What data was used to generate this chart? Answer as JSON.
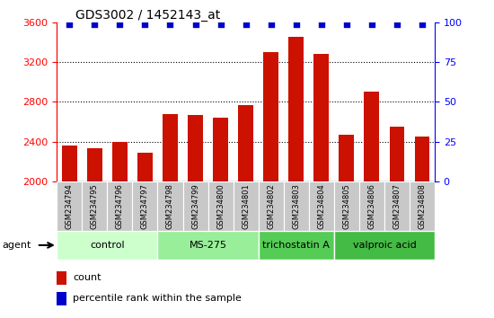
{
  "title": "GDS3002 / 1452143_at",
  "samples": [
    "GSM234794",
    "GSM234795",
    "GSM234796",
    "GSM234797",
    "GSM234798",
    "GSM234799",
    "GSM234800",
    "GSM234801",
    "GSM234802",
    "GSM234803",
    "GSM234804",
    "GSM234805",
    "GSM234806",
    "GSM234807",
    "GSM234808"
  ],
  "counts": [
    2360,
    2330,
    2400,
    2290,
    2680,
    2670,
    2640,
    2770,
    3300,
    3450,
    3280,
    2470,
    2900,
    2550,
    2450
  ],
  "percentile": [
    99,
    99,
    99,
    99,
    99,
    99,
    99,
    99,
    99,
    99,
    99,
    99,
    99,
    99,
    99
  ],
  "groups": [
    {
      "label": "control",
      "start": 0,
      "end": 3,
      "color": "#ccffcc"
    },
    {
      "label": "MS-275",
      "start": 4,
      "end": 7,
      "color": "#99ee99"
    },
    {
      "label": "trichostatin A",
      "start": 8,
      "end": 10,
      "color": "#55cc55"
    },
    {
      "label": "valproic acid",
      "start": 11,
      "end": 14,
      "color": "#44bb44"
    }
  ],
  "bar_color": "#cc1100",
  "dot_color": "#0000cc",
  "ymin": 2000,
  "ymax": 3600,
  "yticks_left": [
    2000,
    2400,
    2800,
    3200,
    3600
  ],
  "yticks_right": [
    0,
    25,
    50,
    75,
    100
  ],
  "legend_count": "count",
  "legend_percentile": "percentile rank within the sample",
  "background_color": "#ffffff",
  "xtick_fontsize": 6,
  "title_fontsize": 10,
  "group_fontsize": 8,
  "legend_fontsize": 8
}
